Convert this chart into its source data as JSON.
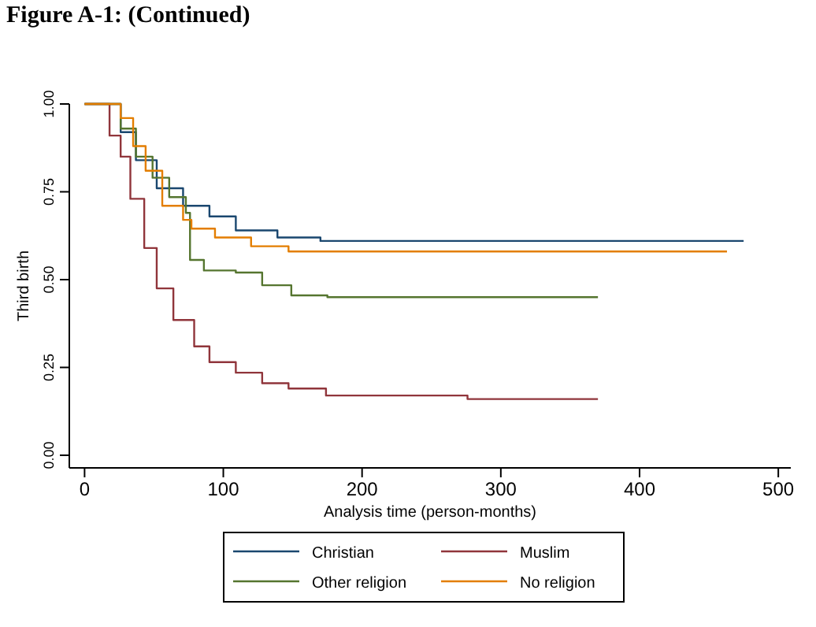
{
  "chart_data": {
    "type": "step",
    "title": "Figure A-1:   (Continued)",
    "xlabel": "Analysis time (person-months)",
    "ylabel": "Third birth",
    "xlim": [
      -11,
      509
    ],
    "xticks": [
      0,
      100,
      200,
      300,
      400,
      500
    ],
    "ylim": [
      -0.036,
      1
    ],
    "yticks": [
      {
        "value": 0,
        "label": "0.00"
      },
      {
        "value": 0.25,
        "label": "0.25"
      },
      {
        "value": 0.5,
        "label": "0.50"
      },
      {
        "value": 0.75,
        "label": "0.75"
      },
      {
        "value": 1,
        "label": "1.00"
      }
    ],
    "grid": false,
    "legend": "bottom",
    "line_style": "solid",
    "marker": "none",
    "series": [
      {
        "name": "Christian",
        "color": "#1a476f",
        "x": [
          0,
          12,
          26,
          37,
          52,
          71,
          90,
          109,
          139,
          170,
          475
        ],
        "values": [
          1,
          1,
          0.92,
          0.84,
          0.76,
          0.71,
          0.68,
          0.64,
          0.62,
          0.61,
          0.61
        ]
      },
      {
        "name": "Muslim",
        "color": "#90353b",
        "x": [
          0,
          12,
          18,
          26,
          33,
          43,
          52,
          64,
          79,
          90,
          109,
          128,
          147,
          174,
          276,
          370
        ],
        "values": [
          1,
          1,
          0.91,
          0.85,
          0.73,
          0.59,
          0.475,
          0.385,
          0.31,
          0.265,
          0.235,
          0.205,
          0.19,
          0.17,
          0.16,
          0.16
        ]
      },
      {
        "name": "Other religion",
        "color": "#55752f",
        "x": [
          0,
          12,
          26,
          37,
          49,
          61,
          73,
          76,
          86,
          109,
          128,
          149,
          175,
          370
        ],
        "values": [
          1,
          1,
          0.93,
          0.85,
          0.79,
          0.735,
          0.69,
          0.556,
          0.526,
          0.52,
          0.484,
          0.455,
          0.45,
          0.45
        ]
      },
      {
        "name": "No religion",
        "color": "#e37e00",
        "x": [
          0,
          12,
          26,
          35,
          44,
          56,
          71,
          77,
          94,
          120,
          147,
          463
        ],
        "values": [
          1,
          1,
          0.96,
          0.88,
          0.81,
          0.71,
          0.67,
          0.645,
          0.62,
          0.595,
          0.58,
          0.58
        ]
      }
    ]
  }
}
